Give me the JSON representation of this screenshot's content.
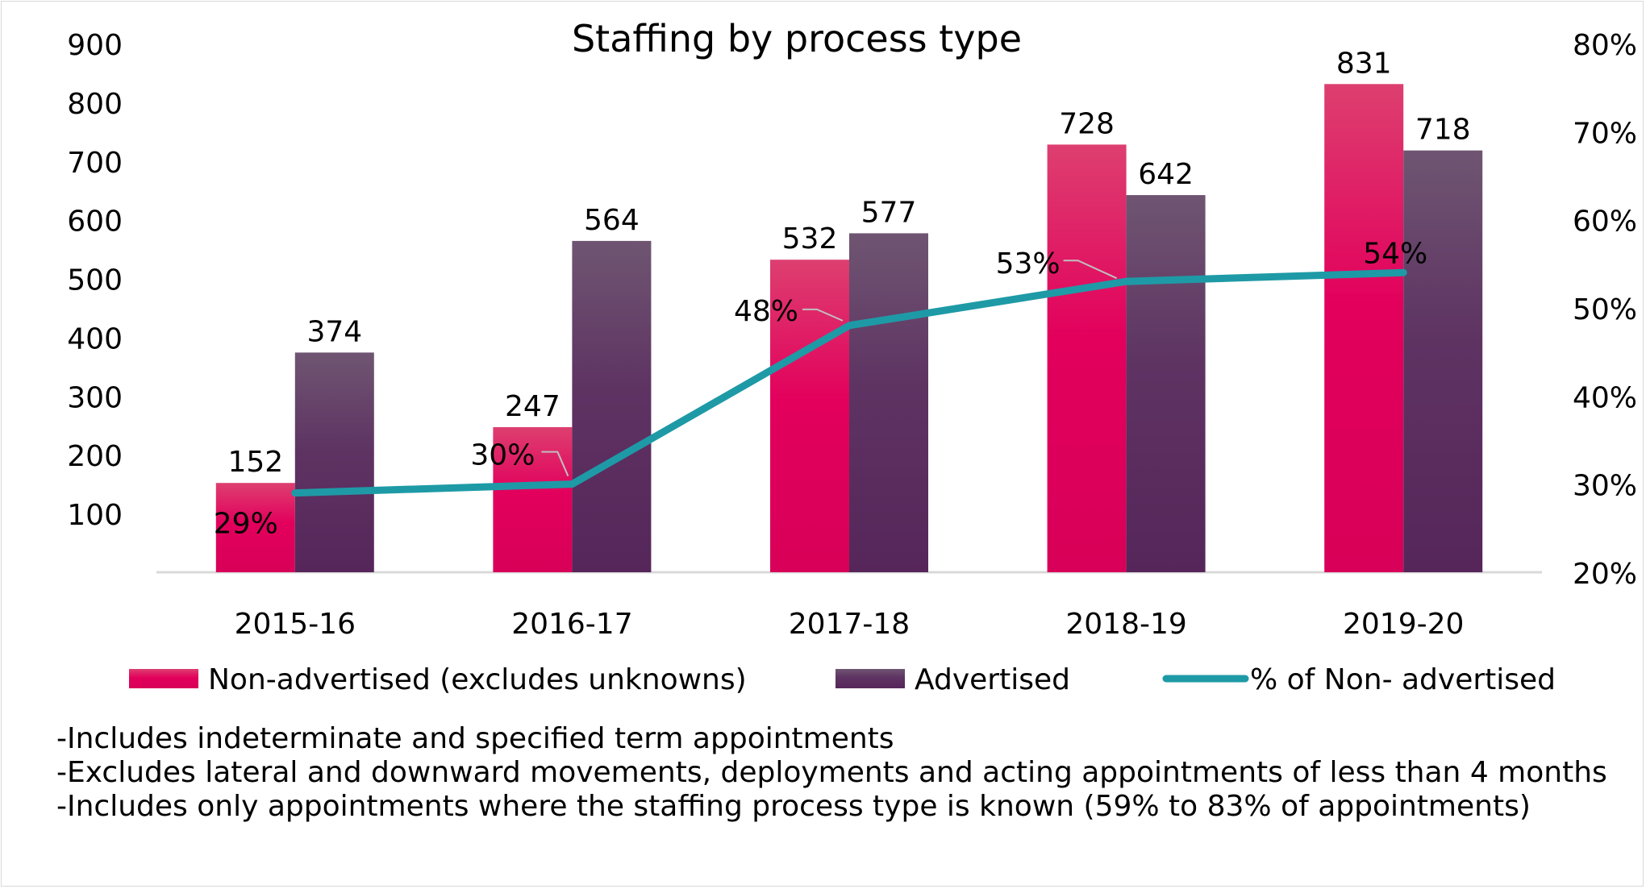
{
  "chart_data": {
    "type": "bar",
    "title": "Staffing by process type",
    "categories": [
      "2015-16",
      "2016-17",
      "2017-18",
      "2018-19",
      "2019-20"
    ],
    "series": [
      {
        "name": "Non-advertised (excludes unknowns)",
        "kind": "bar",
        "axis": "left",
        "values": [
          152,
          247,
          532,
          728,
          831
        ],
        "color": "#e0005a"
      },
      {
        "name": "Advertised",
        "kind": "bar",
        "axis": "left",
        "values": [
          374,
          564,
          577,
          642,
          718
        ],
        "color": "#5a2a5c"
      },
      {
        "name": "% of Non- advertised",
        "kind": "line",
        "axis": "right",
        "values": [
          29,
          30,
          48,
          53,
          54
        ],
        "labels": [
          "29%",
          "30%",
          "48%",
          "53%",
          "54%"
        ],
        "color": "#1e9aa6"
      }
    ],
    "left_axis": {
      "ylim": [
        0,
        900
      ],
      "ticks": [
        100,
        200,
        300,
        400,
        500,
        600,
        700,
        800,
        900
      ]
    },
    "right_axis": {
      "ylim": [
        20,
        80
      ],
      "ticks": [
        "20%",
        "30%",
        "40%",
        "50%",
        "60%",
        "70%",
        "80%"
      ],
      "tick_values": [
        20,
        30,
        40,
        50,
        60,
        70,
        80
      ]
    },
    "legend": "bottom"
  },
  "notes": [
    "-Includes indeterminate and specified term appointments",
    "-Excludes lateral and downward movements, deployments and acting appointments  of less than 4 months",
    "-Includes only appointments where the staffing process type is known (59% to 83% of appointments)"
  ]
}
